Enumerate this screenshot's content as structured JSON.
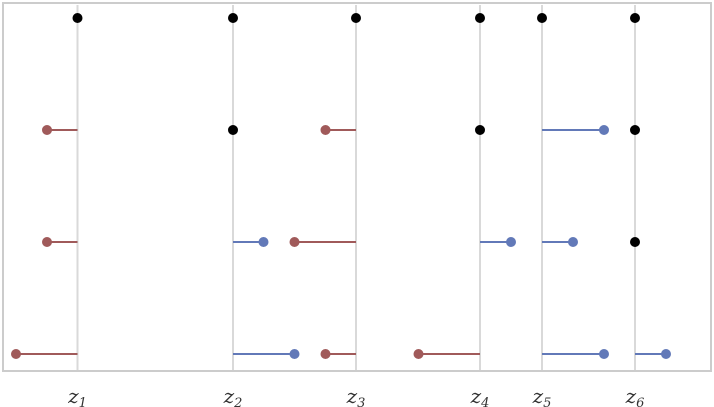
{
  "chart_data": {
    "type": "scatter",
    "description_of_encoding": "x axis: position; each row is a level; red segments point left of a grid line, blue right",
    "x_ticks": [
      {
        "letter": "z",
        "sub": "1",
        "x": 77.5
      },
      {
        "letter": "z",
        "sub": "2",
        "x": 233
      },
      {
        "letter": "z",
        "sub": "3",
        "x": 356
      },
      {
        "letter": "z",
        "sub": "4",
        "x": 480
      },
      {
        "letter": "z",
        "sub": "5",
        "x": 542
      },
      {
        "letter": "z",
        "sub": "6",
        "x": 635
      }
    ],
    "rows": [
      {
        "black": [
          77.5,
          233,
          356,
          480,
          542,
          635
        ],
        "red": [],
        "blue": []
      },
      {
        "black": [
          233,
          480,
          635
        ],
        "red": [
          [
            77.5,
            47
          ],
          [
            356,
            325.5
          ]
        ],
        "blue": [
          [
            542,
            604
          ]
        ]
      },
      {
        "black": [
          635
        ],
        "red": [
          [
            77.5,
            47
          ],
          [
            356,
            294.5
          ]
        ],
        "blue": [
          [
            233,
            263.5
          ],
          [
            480,
            511
          ],
          [
            542,
            573
          ]
        ]
      },
      {
        "black": [],
        "red": [
          [
            77.5,
            16
          ],
          [
            356,
            325.5
          ],
          [
            480,
            418.5
          ]
        ],
        "blue": [
          [
            233,
            294.5
          ],
          [
            542,
            604
          ],
          [
            635,
            666
          ]
        ]
      }
    ],
    "colors": {
      "red": "#a05a5a",
      "blue": "#6279b8",
      "black": "#000000",
      "grid": "#d9d9d9",
      "frame": "#cccccc"
    }
  }
}
